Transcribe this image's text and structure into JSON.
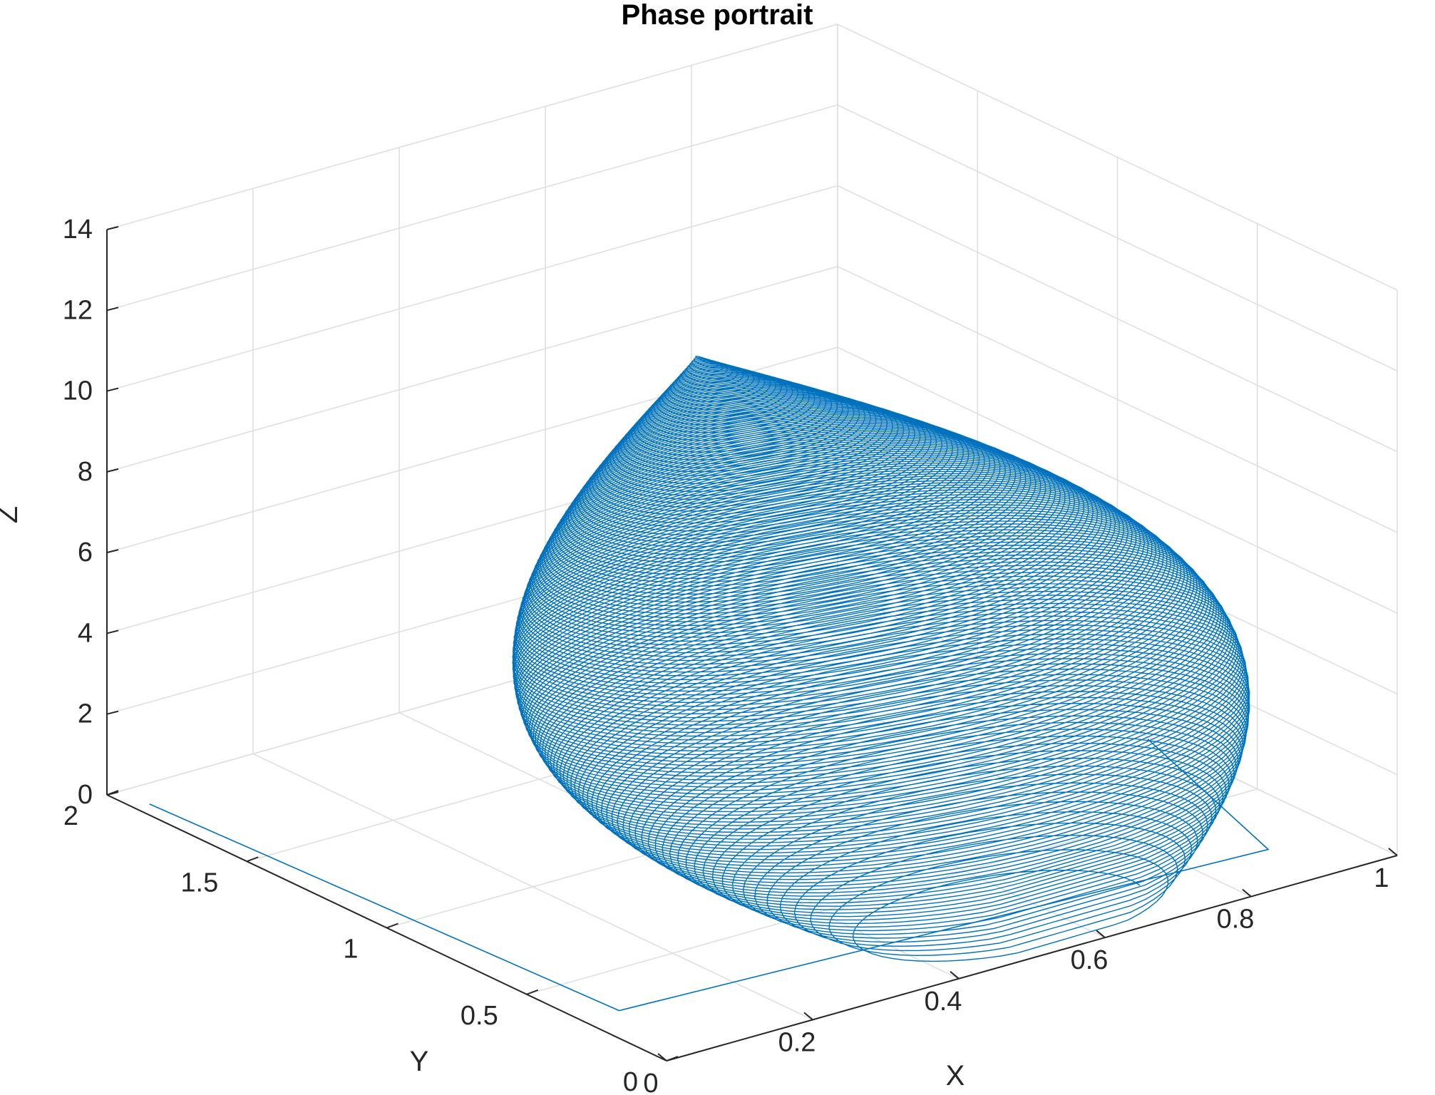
{
  "chart_data": {
    "type": "line",
    "projection": "3d",
    "title": "Phase portrait",
    "xlabel": "X",
    "ylabel": "Y",
    "zlabel": "Z",
    "xlim": [
      0,
      1
    ],
    "ylim": [
      0,
      2
    ],
    "zlim": [
      0,
      14
    ],
    "xticks": [
      0,
      0.2,
      0.4,
      0.6,
      0.8,
      1
    ],
    "xtick_labels": [
      "0",
      "0.2",
      "0.4",
      "0.6",
      "0.8",
      "1"
    ],
    "yticks": [
      0,
      0.5,
      1,
      1.5,
      2
    ],
    "ytick_labels": [
      "0",
      "0.5",
      "1",
      "1.5",
      "2"
    ],
    "zticks": [
      0,
      2,
      4,
      6,
      8,
      10,
      12,
      14
    ],
    "ztick_labels": [
      "0",
      "2",
      "4",
      "6",
      "8",
      "10",
      "12",
      "14"
    ],
    "grid": true,
    "series": [
      {
        "color": "#0072BD",
        "description": "spiral trajectory",
        "approx_path": [
          {
            "x": 0.02,
            "y": 1.9,
            "z": 0.0
          },
          {
            "x": 0.05,
            "y": 0.3,
            "z": 0.0
          },
          {
            "x": 0.9,
            "y": 0.2,
            "z": 0.0
          },
          {
            "x": 0.85,
            "y": 0.5,
            "z": 2.0
          },
          {
            "x": 0.7,
            "y": 1.0,
            "z": 6.0
          },
          {
            "x": 0.55,
            "y": 1.4,
            "z": 9.0
          },
          {
            "x": 0.5,
            "y": 1.5,
            "z": 10.3
          }
        ]
      }
    ]
  }
}
